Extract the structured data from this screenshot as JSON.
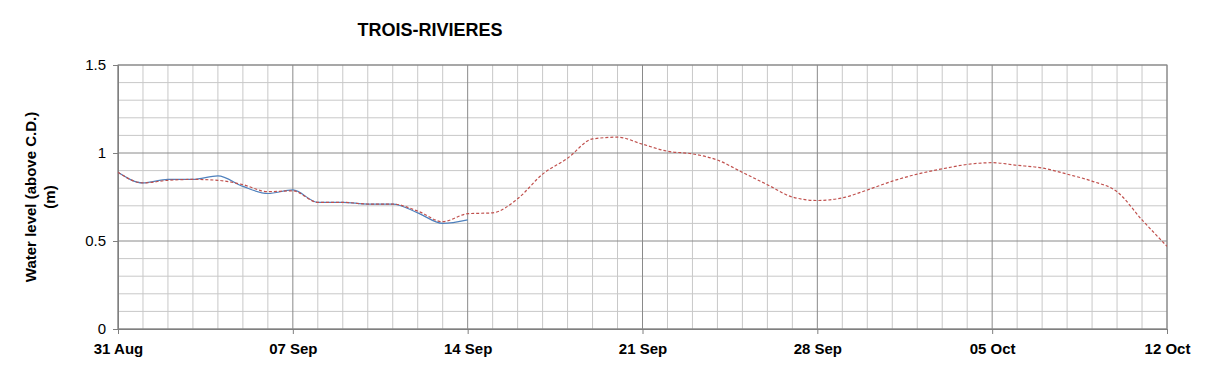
{
  "chart_data": {
    "type": "line",
    "title": "TROIS-RIVIERES",
    "ylabel": [
      "Water level (above C.D.)",
      "(m)"
    ],
    "x": [
      0,
      1,
      2,
      3,
      4,
      5,
      6,
      7,
      8,
      9,
      10,
      11,
      12,
      13,
      14,
      15,
      16,
      17,
      18,
      19,
      20,
      21,
      22,
      23,
      24,
      25,
      26,
      27,
      28,
      29,
      30,
      31,
      32,
      33,
      34,
      35,
      36,
      37,
      38,
      39,
      40,
      41,
      42
    ],
    "xlim": [
      0,
      42
    ],
    "xticks": [
      {
        "value": 0,
        "label": "31 Aug"
      },
      {
        "value": 7,
        "label": "07 Sep"
      },
      {
        "value": 14,
        "label": "14 Sep"
      },
      {
        "value": 21,
        "label": "21 Sep"
      },
      {
        "value": 28,
        "label": "28 Sep"
      },
      {
        "value": 35,
        "label": "05 Oct"
      },
      {
        "value": 42,
        "label": "12 Oct"
      }
    ],
    "ylim": [
      0,
      1.5
    ],
    "yticks": [
      0,
      0.5,
      1,
      1.5
    ],
    "grid": true,
    "series": [
      {
        "color": "#4f81bd",
        "line_style": "solid",
        "values": [
          0.89,
          0.83,
          0.85,
          0.85,
          0.87,
          0.81,
          0.77,
          0.79,
          0.72,
          0.72,
          0.71,
          0.71,
          0.66,
          0.6,
          0.62,
          null,
          null,
          null,
          null,
          null,
          null,
          null,
          null,
          null,
          null,
          null,
          null,
          null,
          null,
          null,
          null,
          null,
          null,
          null,
          null,
          null,
          null,
          null,
          null,
          null,
          null,
          null,
          null
        ]
      },
      {
        "color": "#c0504d",
        "line_style": "dashed",
        "values": [
          0.89,
          0.83,
          0.845,
          0.85,
          0.845,
          0.82,
          0.78,
          0.785,
          0.72,
          0.72,
          0.71,
          0.71,
          0.67,
          0.61,
          0.655,
          0.66,
          0.74,
          0.88,
          0.97,
          1.08,
          1.09,
          1.05,
          1.01,
          0.995,
          0.96,
          0.89,
          0.82,
          0.75,
          0.73,
          0.745,
          0.79,
          0.84,
          0.88,
          0.91,
          0.935,
          0.945,
          0.93,
          0.915,
          0.88,
          0.84,
          0.78,
          0.62,
          0.47
        ]
      }
    ]
  }
}
